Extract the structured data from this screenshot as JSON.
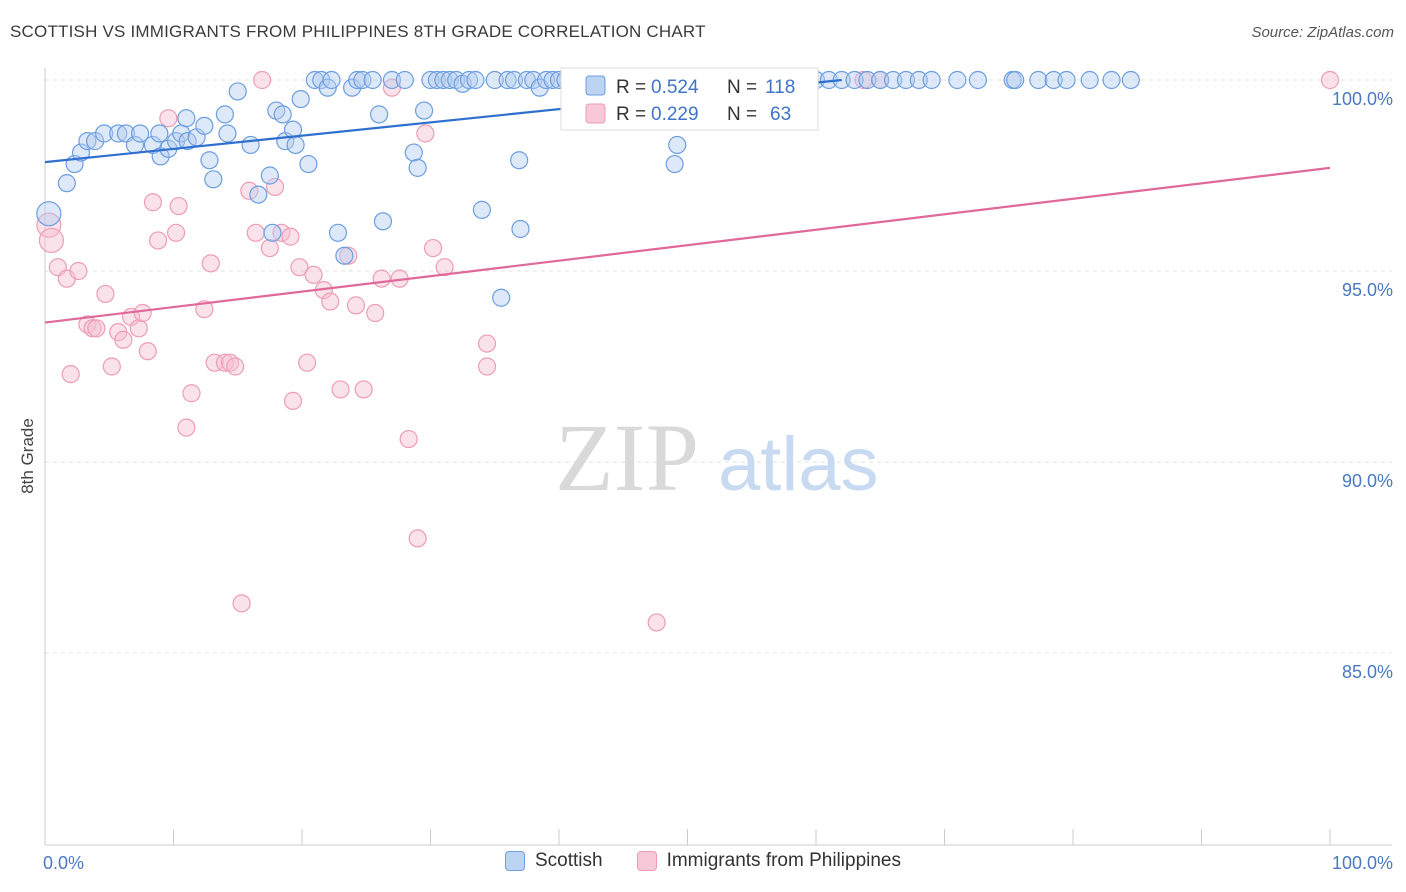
{
  "title": "SCOTTISH VS IMMIGRANTS FROM PHILIPPINES 8TH GRADE CORRELATION CHART",
  "source": "Source: ZipAtlas.com",
  "watermark": {
    "zip": "ZIP",
    "atlas": "atlas"
  },
  "legend_top": [
    {
      "r_label": "R =",
      "r_value": "0.524",
      "n_label": "N =",
      "n_value": "118"
    },
    {
      "r_label": "R =",
      "r_value": "0.229",
      "n_label": "N =",
      "n_value": "63"
    }
  ],
  "chart_data": {
    "type": "scatter",
    "title": "SCOTTISH VS IMMIGRANTS FROM PHILIPPINES 8TH GRADE CORRELATION CHART",
    "ylabel": "8th Grade",
    "xlabel": "",
    "xlim": [
      0,
      100
    ],
    "ylim": [
      80.5,
      101.5
    ],
    "x_tick_labels": [
      "0.0%",
      "100.0%"
    ],
    "y_ticks": [
      {
        "value": 100,
        "label": "100.0%"
      },
      {
        "value": 95,
        "label": "95.0%"
      },
      {
        "value": 90,
        "label": "90.0%"
      },
      {
        "value": 85,
        "label": "85.0%"
      }
    ],
    "grid": true,
    "legend_placement": "bottom-center",
    "colors": {
      "scottish": "#6c9ee0",
      "philippines": "#ee9cb6",
      "scottish_line": "#2f6fcf",
      "philippines_line": "#e0699a"
    },
    "series": [
      {
        "name": "Scottish",
        "R": 0.524,
        "N": 118,
        "trend": {
          "x": [
            0,
            62
          ],
          "y": [
            97.85,
            100.0
          ]
        },
        "points": [
          [
            0.3,
            96.5
          ],
          [
            1.7,
            97.3
          ],
          [
            2.3,
            97.8
          ],
          [
            2.8,
            98.1
          ],
          [
            3.3,
            98.4
          ],
          [
            3.9,
            98.4
          ],
          [
            4.6,
            98.6
          ],
          [
            5.7,
            98.6
          ],
          [
            6.3,
            98.6
          ],
          [
            7.0,
            98.3
          ],
          [
            7.4,
            98.6
          ],
          [
            8.4,
            98.3
          ],
          [
            8.9,
            98.6
          ],
          [
            9.0,
            98.0
          ],
          [
            9.6,
            98.2
          ],
          [
            10.2,
            98.4
          ],
          [
            10.6,
            98.6
          ],
          [
            11.0,
            99.0
          ],
          [
            11.1,
            98.4
          ],
          [
            11.8,
            98.5
          ],
          [
            12.4,
            98.8
          ],
          [
            12.8,
            97.9
          ],
          [
            13.1,
            97.4
          ],
          [
            14.0,
            99.1
          ],
          [
            14.2,
            98.6
          ],
          [
            15.0,
            99.7
          ],
          [
            16.0,
            98.3
          ],
          [
            16.6,
            97.0
          ],
          [
            17.5,
            97.5
          ],
          [
            17.7,
            96.0
          ],
          [
            18.0,
            99.2
          ],
          [
            18.5,
            99.1
          ],
          [
            18.7,
            98.4
          ],
          [
            19.3,
            98.7
          ],
          [
            19.5,
            98.3
          ],
          [
            19.9,
            99.5
          ],
          [
            20.5,
            97.8
          ],
          [
            21.0,
            100.0
          ],
          [
            21.5,
            100.0
          ],
          [
            22.0,
            99.8
          ],
          [
            22.3,
            100.0
          ],
          [
            22.8,
            96.0
          ],
          [
            23.3,
            95.4
          ],
          [
            23.9,
            99.8
          ],
          [
            24.3,
            100.0
          ],
          [
            24.7,
            100.0
          ],
          [
            25.5,
            100.0
          ],
          [
            26.0,
            99.1
          ],
          [
            26.3,
            96.3
          ],
          [
            27.0,
            100.0
          ],
          [
            28.0,
            100.0
          ],
          [
            28.7,
            98.1
          ],
          [
            29.0,
            97.7
          ],
          [
            29.5,
            99.2
          ],
          [
            30.0,
            100.0
          ],
          [
            30.5,
            100.0
          ],
          [
            31.0,
            100.0
          ],
          [
            31.5,
            100.0
          ],
          [
            32.0,
            100.0
          ],
          [
            32.5,
            99.9
          ],
          [
            33.0,
            100.0
          ],
          [
            33.5,
            100.0
          ],
          [
            34.0,
            96.6
          ],
          [
            35.0,
            100.0
          ],
          [
            35.5,
            94.3
          ],
          [
            36.0,
            100.0
          ],
          [
            36.5,
            100.0
          ],
          [
            36.9,
            97.9
          ],
          [
            37.5,
            100.0
          ],
          [
            38.0,
            100.0
          ],
          [
            38.5,
            99.8
          ],
          [
            39.0,
            100.0
          ],
          [
            39.5,
            100.0
          ],
          [
            40.0,
            100.0
          ],
          [
            40.5,
            100.0
          ],
          [
            41.0,
            100.0
          ],
          [
            41.5,
            100.0
          ],
          [
            42.0,
            100.0
          ],
          [
            42.5,
            100.0
          ],
          [
            43.0,
            100.0
          ],
          [
            43.5,
            100.0
          ],
          [
            44.0,
            100.0
          ],
          [
            45.0,
            100.0
          ],
          [
            46.0,
            100.0
          ],
          [
            46.5,
            100.0
          ],
          [
            47.5,
            100.0
          ],
          [
            48.0,
            100.0
          ],
          [
            49.0,
            100.0
          ],
          [
            50.0,
            100.0
          ],
          [
            51.0,
            100.0
          ],
          [
            52.0,
            100.0
          ],
          [
            53.0,
            100.0
          ],
          [
            54.0,
            100.0
          ],
          [
            55.0,
            100.0
          ],
          [
            56.5,
            100.0
          ],
          [
            58.0,
            100.0
          ],
          [
            59.0,
            100.0
          ],
          [
            60.0,
            100.0
          ],
          [
            61.0,
            100.0
          ],
          [
            62.0,
            100.0
          ],
          [
            63.0,
            100.0
          ],
          [
            64.0,
            100.0
          ],
          [
            65.0,
            100.0
          ],
          [
            66.0,
            100.0
          ],
          [
            67.0,
            100.0
          ],
          [
            68.0,
            100.0
          ],
          [
            69.0,
            100.0
          ],
          [
            71.0,
            100.0
          ],
          [
            72.6,
            100.0
          ],
          [
            75.3,
            100.0
          ],
          [
            75.5,
            100.0
          ],
          [
            77.3,
            100.0
          ],
          [
            78.5,
            100.0
          ],
          [
            79.5,
            100.0
          ],
          [
            81.3,
            100.0
          ],
          [
            83.0,
            100.0
          ],
          [
            84.5,
            100.0
          ],
          [
            49.2,
            98.3
          ],
          [
            49.0,
            97.8
          ],
          [
            37.0,
            96.1
          ]
        ]
      },
      {
        "name": "Immigrants from Philippines",
        "R": 0.229,
        "N": 63,
        "trend": {
          "x": [
            0,
            100
          ],
          "y": [
            93.65,
            97.7
          ]
        },
        "points": [
          [
            0.3,
            96.2
          ],
          [
            0.5,
            95.8
          ],
          [
            1.0,
            95.1
          ],
          [
            1.7,
            94.8
          ],
          [
            2.0,
            92.3
          ],
          [
            2.6,
            95.0
          ],
          [
            3.3,
            93.6
          ],
          [
            3.7,
            93.5
          ],
          [
            4.0,
            93.5
          ],
          [
            4.7,
            94.4
          ],
          [
            5.2,
            92.5
          ],
          [
            5.7,
            93.4
          ],
          [
            6.1,
            93.2
          ],
          [
            6.7,
            93.8
          ],
          [
            7.3,
            93.5
          ],
          [
            7.6,
            93.9
          ],
          [
            8.0,
            92.9
          ],
          [
            8.4,
            96.8
          ],
          [
            8.8,
            95.8
          ],
          [
            9.6,
            99.0
          ],
          [
            10.2,
            96.0
          ],
          [
            10.4,
            96.7
          ],
          [
            11.0,
            90.9
          ],
          [
            11.4,
            91.8
          ],
          [
            12.4,
            94.0
          ],
          [
            12.9,
            95.2
          ],
          [
            13.2,
            92.6
          ],
          [
            14.0,
            92.6
          ],
          [
            14.4,
            92.6
          ],
          [
            14.8,
            92.5
          ],
          [
            15.3,
            86.3
          ],
          [
            15.9,
            97.1
          ],
          [
            16.4,
            96.0
          ],
          [
            16.9,
            100.0
          ],
          [
            17.5,
            95.6
          ],
          [
            17.9,
            97.2
          ],
          [
            18.4,
            96.0
          ],
          [
            19.1,
            95.9
          ],
          [
            19.3,
            91.6
          ],
          [
            19.8,
            95.1
          ],
          [
            20.4,
            92.6
          ],
          [
            20.9,
            94.9
          ],
          [
            21.7,
            94.5
          ],
          [
            22.2,
            94.2
          ],
          [
            23.0,
            91.9
          ],
          [
            23.6,
            95.4
          ],
          [
            24.2,
            94.1
          ],
          [
            24.8,
            91.9
          ],
          [
            25.7,
            93.9
          ],
          [
            26.2,
            94.8
          ],
          [
            27.0,
            99.8
          ],
          [
            27.6,
            94.8
          ],
          [
            28.3,
            90.6
          ],
          [
            29.0,
            88.0
          ],
          [
            29.6,
            98.6
          ],
          [
            30.2,
            95.6
          ],
          [
            31.1,
            95.1
          ],
          [
            34.4,
            93.1
          ],
          [
            34.4,
            92.5
          ],
          [
            47.6,
            85.8
          ],
          [
            63.7,
            100.0
          ],
          [
            65.0,
            100.0
          ],
          [
            100.0,
            100.0
          ]
        ]
      }
    ]
  }
}
